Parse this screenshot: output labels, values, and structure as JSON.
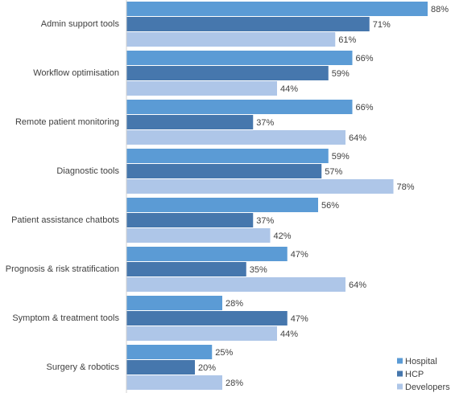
{
  "chart_data": {
    "type": "hbar",
    "categories": [
      "Admin support tools",
      "Workflow optimisation",
      "Remote patient monitoring",
      "Diagnostic tools",
      "Patient assistance chatbots",
      "Prognosis & risk stratification",
      "Symptom & treatment tools",
      "Surgery & robotics"
    ],
    "series": [
      {
        "name": "Hospital",
        "color": "#5b9bd5",
        "values": [
          88,
          66,
          66,
          59,
          56,
          47,
          28,
          25
        ],
        "value_labels": [
          "88%",
          "66%",
          "66%",
          "59%",
          "56%",
          "47%",
          "28%",
          "25%"
        ]
      },
      {
        "name": "HCP",
        "color": "#4677ad",
        "values": [
          71,
          59,
          37,
          57,
          37,
          35,
          47,
          20
        ],
        "value_labels": [
          "71%",
          "59%",
          "37%",
          "57%",
          "37%",
          "35%",
          "47%",
          "20%"
        ]
      },
      {
        "name": "Developers",
        "color": "#aec6e8",
        "values": [
          61,
          44,
          64,
          78,
          42,
          64,
          44,
          28
        ],
        "value_labels": [
          "61%",
          "44%",
          "64%",
          "78%",
          "42%",
          "64%",
          "44%",
          "28%"
        ]
      }
    ],
    "legend": "bottom-right"
  }
}
